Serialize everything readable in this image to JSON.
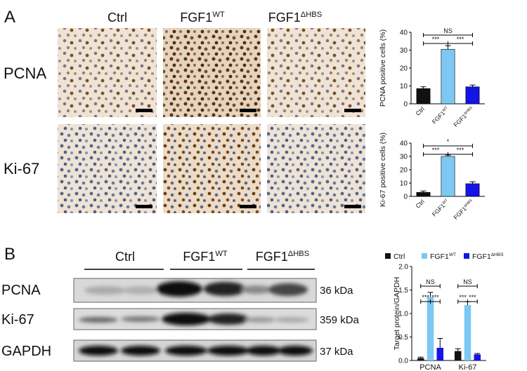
{
  "figure": {
    "panel_a": "A",
    "panel_b": "B",
    "columns": [
      {
        "text": "Ctrl"
      },
      {
        "text": "FGF1",
        "sup": "WT"
      },
      {
        "text": "FGF1",
        "sup": "ΔHBS"
      }
    ],
    "rows": [
      "PCNA",
      "Ki-67"
    ],
    "blot": {
      "columns": [
        {
          "text": "Ctrl"
        },
        {
          "text": "FGF1",
          "sup": "WT"
        },
        {
          "text": "FGF1",
          "sup": "ΔHBS"
        }
      ],
      "rows": [
        "PCNA",
        "Ki-67",
        "GAPDH"
      ],
      "sizes": [
        "36 kDa",
        "359 kDa",
        "37 kDa"
      ]
    }
  },
  "chart_data": [
    {
      "type": "bar",
      "y_label": "PCNA positive cells (%)",
      "categories": [
        "Ctrl",
        "FGF1",
        "FGF1"
      ],
      "category_sup": [
        null,
        "WT",
        "ΔHBS"
      ],
      "values": [
        8.5,
        30.5,
        9.5
      ],
      "errors": [
        1,
        2,
        1
      ],
      "colors": [
        "#111111",
        "#7cc7f4",
        "#1414e6"
      ],
      "ylim": [
        0,
        40
      ],
      "yticks": [
        0,
        10,
        20,
        30,
        40
      ],
      "annotations": [
        {
          "label": "***",
          "between": [
            0,
            1
          ]
        },
        {
          "label": "***",
          "between": [
            1,
            2
          ]
        },
        {
          "label": "NS",
          "between": [
            0,
            2
          ]
        }
      ]
    },
    {
      "type": "bar",
      "y_label": "Ki-67 positive cells (%)",
      "categories": [
        "Ctrl",
        "FGF1",
        "FGF1"
      ],
      "category_sup": [
        null,
        "WT",
        "ΔHBS"
      ],
      "values": [
        3,
        30,
        9.5
      ],
      "errors": [
        1,
        1,
        1.5
      ],
      "colors": [
        "#111111",
        "#7cc7f4",
        "#1414e6"
      ],
      "ylim": [
        0,
        40
      ],
      "yticks": [
        0,
        10,
        20,
        30,
        40
      ],
      "annotations": [
        {
          "label": "***",
          "between": [
            0,
            1
          ]
        },
        {
          "label": "***",
          "between": [
            1,
            2
          ]
        },
        {
          "label": "*",
          "between": [
            0,
            2
          ]
        }
      ]
    },
    {
      "type": "bar",
      "y_label": "Target protein/GAPDH",
      "categories": [
        "PCNA",
        "Ki-67"
      ],
      "series": [
        {
          "name": "Ctrl",
          "color": "#111111",
          "values": [
            0.05,
            0.2
          ],
          "errors": [
            0.02,
            0.05
          ]
        },
        {
          "name": "FGF1",
          "sup": "WT",
          "color": "#7cc7f4",
          "values": [
            1.35,
            1.18
          ],
          "errors": [
            0.1,
            0.07
          ]
        },
        {
          "name": "FGF1",
          "sup": "ΔHBS",
          "color": "#1414e6",
          "values": [
            0.27,
            0.13
          ],
          "errors": [
            0.2,
            0.02
          ]
        }
      ],
      "ylim": [
        0,
        2.0
      ],
      "yticks": [
        {
          "value": 0,
          "label": "0.0"
        },
        {
          "value": 0.5,
          "label": "0.5"
        },
        {
          "value": 1,
          "label": "1.0"
        },
        {
          "value": 1.5,
          "label": "1.5"
        },
        {
          "value": 2,
          "label": "2.0"
        }
      ],
      "annotations": [
        {
          "category": 0,
          "label": "***",
          "between": [
            0,
            1
          ]
        },
        {
          "category": 0,
          "label": "***",
          "between": [
            1,
            2
          ]
        },
        {
          "category": 0,
          "label": "NS",
          "between": [
            0,
            2
          ]
        },
        {
          "category": 1,
          "label": "***",
          "between": [
            0,
            1
          ]
        },
        {
          "category": 1,
          "label": "***",
          "between": [
            1,
            2
          ]
        },
        {
          "category": 1,
          "label": "NS",
          "between": [
            0,
            2
          ]
        }
      ]
    }
  ]
}
